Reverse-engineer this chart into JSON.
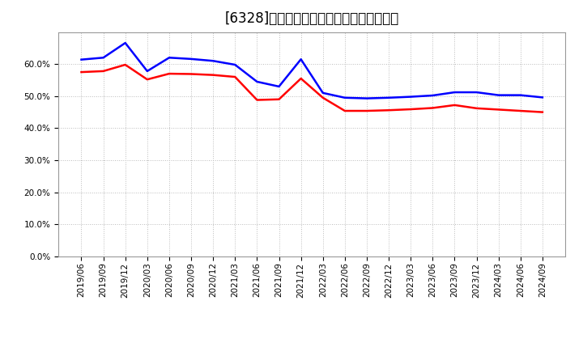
{
  "title": "[6328]　固定比率、固定長期適合率の推移",
  "series1_label": "固定比率",
  "series2_label": "固定長期適合率",
  "series1_color": "#0000FF",
  "series2_color": "#FF0000",
  "background_color": "#FFFFFF",
  "plot_bg_color": "#FFFFFF",
  "ylim": [
    0.0,
    0.7
  ],
  "yticks": [
    0.0,
    0.1,
    0.2,
    0.3,
    0.4,
    0.5,
    0.6
  ],
  "x_labels": [
    "2019/06",
    "2019/09",
    "2019/12",
    "2020/03",
    "2020/06",
    "2020/09",
    "2020/12",
    "2021/03",
    "2021/06",
    "2021/09",
    "2021/12",
    "2022/03",
    "2022/06",
    "2022/09",
    "2022/12",
    "2023/03",
    "2023/06",
    "2023/09",
    "2023/12",
    "2024/03",
    "2024/06",
    "2024/09"
  ],
  "series1_values": [
    0.614,
    0.62,
    0.666,
    0.578,
    0.62,
    0.616,
    0.61,
    0.598,
    0.545,
    0.53,
    0.615,
    0.51,
    0.495,
    0.493,
    0.495,
    0.498,
    0.502,
    0.512,
    0.512,
    0.503,
    0.503,
    0.496
  ],
  "series2_values": [
    0.575,
    0.578,
    0.598,
    0.552,
    0.57,
    0.569,
    0.566,
    0.56,
    0.488,
    0.49,
    0.555,
    0.495,
    0.454,
    0.454,
    0.456,
    0.459,
    0.463,
    0.472,
    0.462,
    0.458,
    0.454,
    0.45
  ],
  "grid_color": "#BBBBBB",
  "line_width": 1.8,
  "title_fontsize": 12,
  "tick_fontsize": 7.5,
  "legend_fontsize": 9
}
